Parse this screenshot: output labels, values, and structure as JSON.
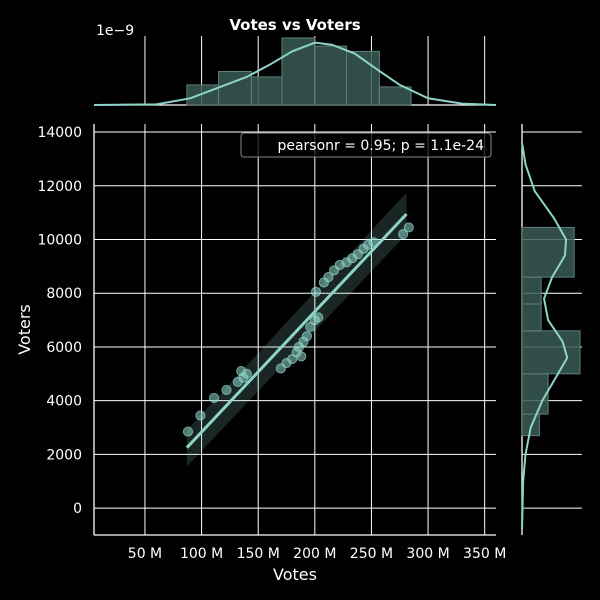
{
  "chart_data": {
    "type": "scatter",
    "title": "Votes vs Voters",
    "xlabel": "Votes",
    "ylabel": "Voters",
    "x_offset_label": "1e−9",
    "annotation": "pearsonr = 0.95; p = 1.1e-24",
    "xlim": [
      5000000,
      360000000
    ],
    "ylim": [
      -1000,
      14300
    ],
    "x_ticks": [
      50000000,
      100000000,
      150000000,
      200000000,
      250000000,
      300000000,
      350000000
    ],
    "x_tick_labels": [
      "50 M",
      "100 M",
      "150 M",
      "200 M",
      "250 M",
      "300 M",
      "350 M"
    ],
    "y_ticks": [
      0,
      2000,
      4000,
      6000,
      8000,
      10000,
      12000,
      14000
    ],
    "y_tick_labels": [
      "0",
      "2000",
      "4000",
      "6000",
      "8000",
      "10000",
      "12000",
      "14000"
    ],
    "grid": true,
    "colors": {
      "background": "#000000",
      "grid": "#ffffff",
      "accent": "#8dd3c7",
      "hist_fill": "#3a5a55"
    },
    "points": [
      {
        "x": 88000000,
        "y": 2850
      },
      {
        "x": 99000000,
        "y": 3450
      },
      {
        "x": 111000000,
        "y": 4100
      },
      {
        "x": 122000000,
        "y": 4400
      },
      {
        "x": 132000000,
        "y": 4700
      },
      {
        "x": 135000000,
        "y": 5100
      },
      {
        "x": 137000000,
        "y": 4850
      },
      {
        "x": 140000000,
        "y": 5000
      },
      {
        "x": 170000000,
        "y": 5200
      },
      {
        "x": 175000000,
        "y": 5400
      },
      {
        "x": 180000000,
        "y": 5550
      },
      {
        "x": 184000000,
        "y": 5800
      },
      {
        "x": 186000000,
        "y": 6000
      },
      {
        "x": 188000000,
        "y": 5650
      },
      {
        "x": 190000000,
        "y": 6200
      },
      {
        "x": 193000000,
        "y": 6400
      },
      {
        "x": 196000000,
        "y": 6750
      },
      {
        "x": 200000000,
        "y": 7000
      },
      {
        "x": 203000000,
        "y": 7100
      },
      {
        "x": 201000000,
        "y": 8050
      },
      {
        "x": 208000000,
        "y": 8400
      },
      {
        "x": 212000000,
        "y": 8600
      },
      {
        "x": 217000000,
        "y": 8850
      },
      {
        "x": 222000000,
        "y": 9050
      },
      {
        "x": 228000000,
        "y": 9150
      },
      {
        "x": 233000000,
        "y": 9300
      },
      {
        "x": 238000000,
        "y": 9450
      },
      {
        "x": 243000000,
        "y": 9650
      },
      {
        "x": 247000000,
        "y": 9800
      },
      {
        "x": 252000000,
        "y": 9900
      },
      {
        "x": 278000000,
        "y": 10200
      },
      {
        "x": 283000000,
        "y": 10450
      }
    ],
    "regression": {
      "x": [
        87000000,
        281000000
      ],
      "y": [
        2250,
        10950
      ],
      "ci_start": [
        1550,
        2900
      ],
      "ci_end": [
        10200,
        11750
      ]
    },
    "x_hist": {
      "bins": [
        [
          87000000,
          115000000,
          0.3
        ],
        [
          115000000,
          144000000,
          0.5
        ],
        [
          144000000,
          171000000,
          0.42
        ],
        [
          171000000,
          200000000,
          1.0
        ],
        [
          200000000,
          228000000,
          0.88
        ],
        [
          228000000,
          257000000,
          0.8
        ],
        [
          257000000,
          285000000,
          0.27
        ]
      ],
      "kde": [
        [
          5000000,
          0.0
        ],
        [
          60000000,
          0.01
        ],
        [
          90000000,
          0.1
        ],
        [
          115000000,
          0.26
        ],
        [
          140000000,
          0.42
        ],
        [
          160000000,
          0.6
        ],
        [
          180000000,
          0.8
        ],
        [
          200000000,
          0.93
        ],
        [
          215000000,
          0.9
        ],
        [
          235000000,
          0.77
        ],
        [
          255000000,
          0.53
        ],
        [
          275000000,
          0.3
        ],
        [
          300000000,
          0.1
        ],
        [
          330000000,
          0.02
        ],
        [
          360000000,
          0.0
        ]
      ]
    },
    "y_hist": {
      "bins": [
        [
          2700,
          3500,
          0.3
        ],
        [
          3500,
          5000,
          0.45
        ],
        [
          5000,
          6600,
          1.0
        ],
        [
          6600,
          7600,
          0.33
        ],
        [
          7600,
          8600,
          0.33
        ],
        [
          8600,
          10450,
          0.9
        ]
      ],
      "kde": [
        [
          -800,
          0.0
        ],
        [
          1000,
          0.02
        ],
        [
          2000,
          0.06
        ],
        [
          3000,
          0.15
        ],
        [
          4000,
          0.35
        ],
        [
          5000,
          0.62
        ],
        [
          5600,
          0.78
        ],
        [
          6200,
          0.7
        ],
        [
          7000,
          0.45
        ],
        [
          7800,
          0.38
        ],
        [
          8600,
          0.52
        ],
        [
          9400,
          0.74
        ],
        [
          10000,
          0.76
        ],
        [
          10800,
          0.55
        ],
        [
          11800,
          0.22
        ],
        [
          12800,
          0.06
        ],
        [
          13600,
          0.0
        ]
      ]
    }
  }
}
